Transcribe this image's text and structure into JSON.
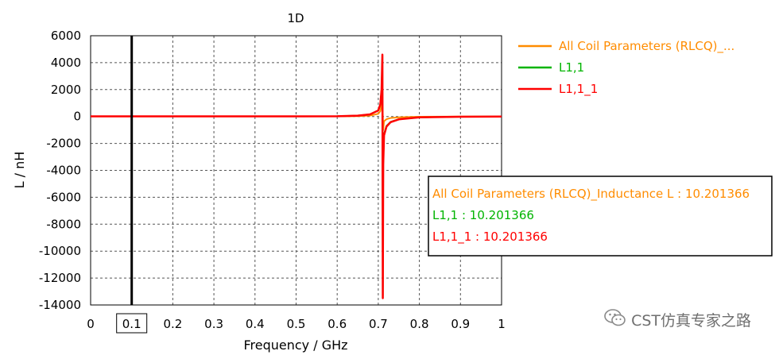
{
  "chart_data": {
    "type": "line",
    "title": "1D",
    "xlabel": "Frequency / GHz",
    "ylabel": "L / nH",
    "xlim": [
      0,
      1
    ],
    "ylim": [
      -14000,
      6000
    ],
    "x_ticks": [
      "0",
      "0.1",
      "0.2",
      "0.3",
      "0.4",
      "0.5",
      "0.6",
      "0.7",
      "0.8",
      "0.9",
      "1"
    ],
    "y_ticks": [
      "6000",
      "4000",
      "2000",
      "0",
      "-2000",
      "-4000",
      "-6000",
      "-8000",
      "-10000",
      "-12000",
      "-14000"
    ],
    "grid": true,
    "marker": {
      "x": 0.1,
      "label": "0.1"
    },
    "series": [
      {
        "name": "All Coil Parameters (RLCQ)_...",
        "color": "#ff8c00",
        "x": [
          0,
          0.1,
          0.3,
          0.5,
          0.6,
          0.65,
          0.68,
          0.7,
          0.705,
          0.71,
          0.712,
          0.714,
          0.72,
          0.73,
          0.75,
          0.8,
          0.9,
          1
        ],
        "y": [
          10,
          10,
          10,
          10,
          15,
          30,
          70,
          200,
          400,
          1200,
          -1000,
          -350,
          -200,
          -110,
          -60,
          -20,
          -5,
          0
        ]
      },
      {
        "name": "L1,1",
        "color": "#00b400",
        "x": [
          0,
          0.1,
          0.3,
          0.5,
          0.6,
          0.65,
          0.68,
          0.7,
          0.705,
          0.708,
          0.71,
          0.711,
          0.712,
          0.714,
          0.72,
          0.73,
          0.75,
          0.8,
          0.9,
          1
        ],
        "y": [
          10,
          10,
          10,
          10,
          20,
          60,
          160,
          450,
          900,
          2000,
          4500,
          -13300,
          -3500,
          -1300,
          -700,
          -400,
          -200,
          -60,
          -20,
          0
        ]
      },
      {
        "name": "L1,1_1",
        "color": "#ff0000",
        "x": [
          0,
          0.1,
          0.3,
          0.5,
          0.6,
          0.65,
          0.68,
          0.7,
          0.705,
          0.708,
          0.71,
          0.711,
          0.712,
          0.714,
          0.72,
          0.73,
          0.75,
          0.8,
          0.9,
          1
        ],
        "y": [
          10,
          10,
          10,
          10,
          20,
          60,
          160,
          450,
          900,
          2000,
          4600,
          -13500,
          -3600,
          -1400,
          -750,
          -420,
          -210,
          -60,
          -20,
          0
        ]
      }
    ],
    "legend": {
      "placement": "right",
      "entries": [
        {
          "label": "All Coil Parameters (RLCQ)_...",
          "color": "#ff8c00"
        },
        {
          "label": "L1,1",
          "color": "#00b400"
        },
        {
          "label": "L1,1_1",
          "color": "#ff0000"
        }
      ]
    },
    "readout": [
      {
        "text": "All Coil Parameters (RLCQ)_Inductance L : 10.201366",
        "color": "#ff8c00"
      },
      {
        "text": "L1,1 : 10.201366",
        "color": "#00b400"
      },
      {
        "text": "L1,1_1 : 10.201366",
        "color": "#ff0000"
      }
    ]
  },
  "watermark": {
    "icon": "wechat-icon",
    "text": "CST仿真专家之路"
  }
}
